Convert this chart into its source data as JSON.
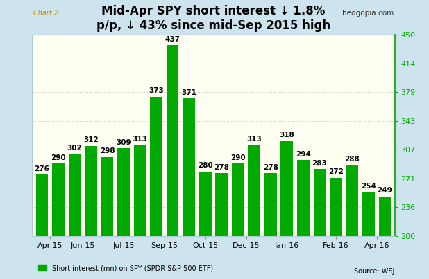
{
  "title_line1": "Mid-Apr SPY short interest ↓ 1.8%",
  "title_line2": "p/p, ↓ 43% since mid-Sep 2015 high",
  "chart_label": "Chart 2",
  "source_label": "hedgopia.com",
  "footer_source": "Source: WSJ",
  "legend_label": "Short interest (mn) on SPY (SPDR S&P 500 ETF)",
  "x_labels": [
    "Apr-15",
    "Jun-15",
    "Jul-15",
    "Sep-15",
    "Oct-15",
    "Dec-15",
    "Jan-16",
    "Feb-16",
    "Apr-16"
  ],
  "values": [
    276,
    290,
    302,
    312,
    298,
    309,
    313,
    373,
    437,
    371,
    280,
    278,
    290,
    313,
    278,
    318,
    294,
    283,
    272,
    288,
    254,
    249
  ],
  "bar_groups": [
    2,
    2,
    3,
    2,
    3,
    2,
    3,
    3,
    2
  ],
  "bar_color": "#00aa00",
  "plot_bg_color": "#fffff2",
  "outer_bg_color": "#cde4ef",
  "inner_border_color": "#aacccc",
  "grid_color": "#bbbbbb",
  "ylim": [
    200,
    450
  ],
  "yticks_right": [
    200,
    236,
    271,
    307,
    343,
    379,
    414,
    450
  ],
  "title_fontsize": 12,
  "bar_label_fontsize": 7.5,
  "tick_fontsize": 8,
  "right_tick_color": "#00aa00",
  "chart_label_color": "#cc8800",
  "hedgopia_color": "#333333"
}
